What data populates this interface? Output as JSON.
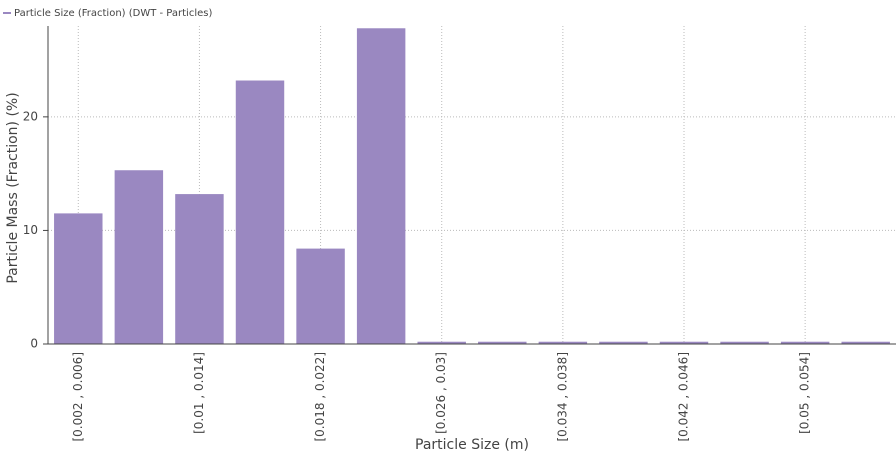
{
  "chart_data": {
    "type": "bar",
    "legend": "Particle Size (Fraction) (DWT - Particles)",
    "x_label": "Particle Size (m)",
    "y_label": "Particle Mass (Fraction) (%)",
    "categories": [
      "[0.002 , 0.006]",
      null,
      "[0.01 , 0.014]",
      null,
      "[0.018 , 0.022]",
      null,
      "[0.026 , 0.03]",
      null,
      "[0.034 , 0.038]",
      null,
      "[0.042 , 0.046]",
      null,
      "[0.05 , 0.054]",
      null
    ],
    "values": [
      11.5,
      15.3,
      13.2,
      23.2,
      8.4,
      27.8,
      0.2,
      0.2,
      0.2,
      0.2,
      0.2,
      0.2,
      0.2,
      0.2
    ],
    "color": "#9a88c1",
    "ylim": [
      0,
      28
    ],
    "yticks": [
      0,
      10,
      20
    ],
    "grid": true
  }
}
